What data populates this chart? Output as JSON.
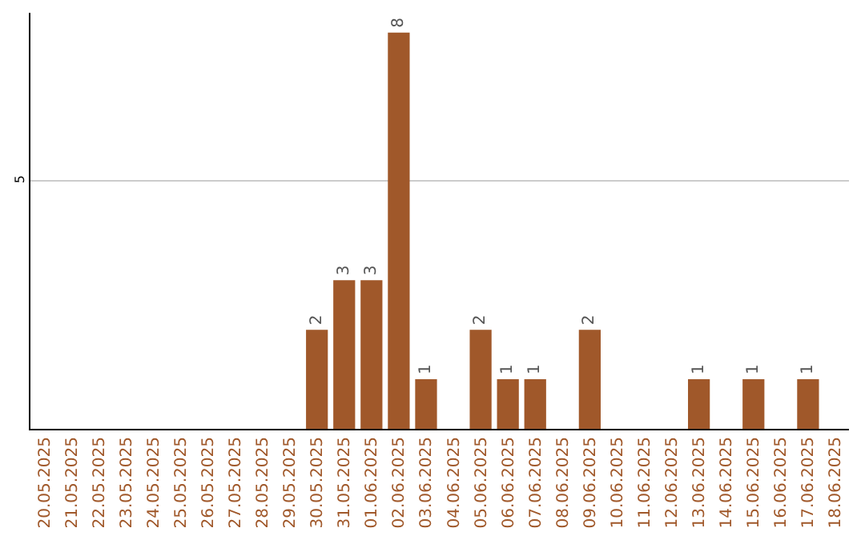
{
  "chart_data": {
    "type": "bar",
    "categories": [
      "20.05.2025",
      "21.05.2025",
      "22.05.2025",
      "23.05.2025",
      "24.05.2025",
      "25.05.2025",
      "26.05.2025",
      "27.05.2025",
      "28.05.2025",
      "29.05.2025",
      "30.05.2025",
      "31.05.2025",
      "01.06.2025",
      "02.06.2025",
      "03.06.2025",
      "04.06.2025",
      "05.06.2025",
      "06.06.2025",
      "07.06.2025",
      "08.06.2025",
      "09.06.2025",
      "10.06.2025",
      "11.06.2025",
      "12.06.2025",
      "13.06.2025",
      "14.06.2025",
      "15.06.2025",
      "16.06.2025",
      "17.06.2025",
      "18.06.2025"
    ],
    "values": [
      0,
      0,
      0,
      0,
      0,
      0,
      0,
      0,
      0,
      0,
      2,
      3,
      3,
      8,
      1,
      0,
      2,
      1,
      1,
      0,
      2,
      0,
      0,
      0,
      1,
      0,
      1,
      0,
      1,
      0
    ],
    "value_labels": [
      null,
      null,
      null,
      null,
      null,
      null,
      null,
      null,
      null,
      null,
      "2",
      "3",
      "3",
      "8",
      "1",
      null,
      "2",
      "1",
      "1",
      null,
      "2",
      null,
      null,
      null,
      "1",
      null,
      "1",
      null,
      "1",
      null
    ],
    "color": "#a0582a",
    "ylim": [
      0,
      8.4
    ],
    "yticks": [
      5
    ],
    "grid": "y"
  }
}
